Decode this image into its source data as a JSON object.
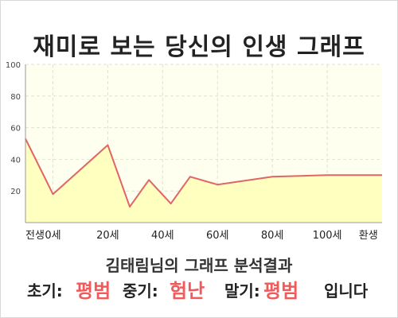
{
  "title": "재미로 보는 당신의 인생 그래프",
  "chart_data": {
    "type": "area",
    "x_labels": [
      "전생",
      "0세",
      "20세",
      "40세",
      "60세",
      "80세",
      "100세",
      "환생"
    ],
    "x": [
      -10,
      0,
      20,
      28,
      35,
      43,
      50,
      60,
      80,
      100,
      115
    ],
    "values": [
      53,
      18,
      49,
      10,
      27,
      12,
      29,
      24,
      29,
      30,
      30
    ],
    "ylim": [
      0,
      100
    ],
    "yticks": [
      20,
      40,
      60,
      80,
      100
    ],
    "grid": true,
    "colors": {
      "line": "#e06666",
      "fill": "#ffffc0",
      "plot_bg": "#fffff0",
      "grid": "#e2e2d0",
      "axis": "#999999"
    }
  },
  "summary": "김태림님의 그래프 분석결과",
  "verdict": {
    "early_label": "초기:",
    "early_value": "평범",
    "mid_label": "중기:",
    "mid_value": "험난",
    "late_label": "말기:",
    "late_value": "평범",
    "ending": "입니다"
  }
}
